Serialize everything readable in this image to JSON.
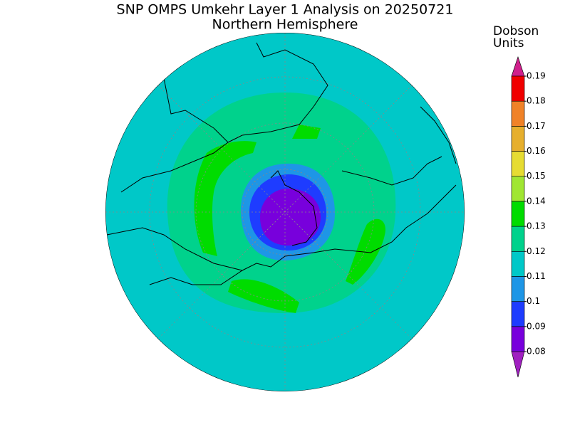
{
  "title": "SNP OMPS Umkehr Layer 1 Analysis on 20250721",
  "subtitle": "Northern Hemisphere",
  "colorbar": {
    "label": [
      "Dobson",
      "Units"
    ],
    "ticks": [
      0.08,
      0.09,
      0.1,
      0.11,
      0.12,
      0.13,
      0.14,
      0.15,
      0.16,
      0.17,
      0.18,
      0.19
    ],
    "colors": [
      "#a020c0",
      "#7800dc",
      "#1e3cff",
      "#1e96e6",
      "#00c8c8",
      "#00d28c",
      "#00dc00",
      "#a0e632",
      "#e6dc32",
      "#e6af2d",
      "#f08228",
      "#f00000",
      "#d0208c"
    ]
  }
}
